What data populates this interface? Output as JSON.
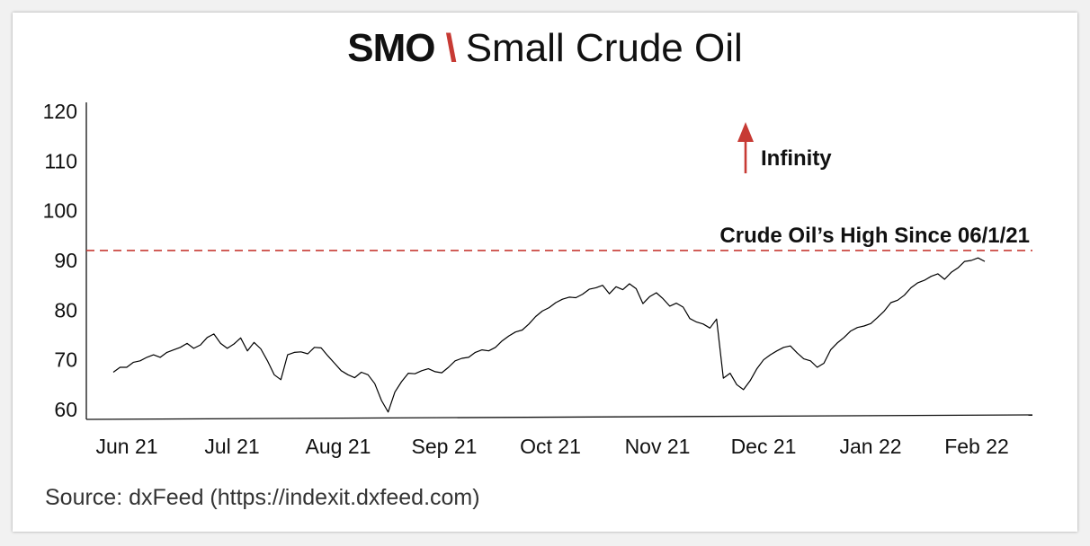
{
  "title": {
    "code": "SMO",
    "separator": "\\",
    "name": "Small Crude Oil"
  },
  "source": "Source: dxFeed (https://indexit.dxfeed.com)",
  "colors": {
    "line": "#000000",
    "accent": "#c73a34"
  },
  "chart_data": {
    "type": "line",
    "title": "SMO \\ Small Crude Oil",
    "xlabel": "",
    "ylabel": "",
    "ylim": [
      60,
      120
    ],
    "y_ticks": [
      60,
      70,
      80,
      90,
      100,
      110,
      120
    ],
    "x_tick_labels": [
      "Jun 21",
      "Jul 21",
      "Aug 21",
      "Sep 21",
      "Oct 21",
      "Nov 21",
      "Dec 21",
      "Jan 22",
      "Feb 22"
    ],
    "grid": false,
    "reference_line": {
      "label": "Crude Oil’s High Since 06/1/21",
      "value": 92,
      "style": "dashed"
    },
    "annotation": {
      "label": "Infinity",
      "direction": "up"
    },
    "series": [
      {
        "x": [
          "2021-06-01",
          "2021-06-03",
          "2021-06-05",
          "2021-06-07",
          "2021-06-09",
          "2021-06-11",
          "2021-06-13",
          "2021-06-15",
          "2021-06-17",
          "2021-06-19",
          "2021-06-21",
          "2021-06-23",
          "2021-06-25",
          "2021-06-27",
          "2021-06-29",
          "2021-07-01",
          "2021-07-03",
          "2021-07-05",
          "2021-07-07",
          "2021-07-09",
          "2021-07-11",
          "2021-07-13",
          "2021-07-15",
          "2021-07-17",
          "2021-07-19",
          "2021-07-21",
          "2021-07-23",
          "2021-07-25",
          "2021-07-27",
          "2021-07-29",
          "2021-07-31",
          "2021-08-02",
          "2021-08-04",
          "2021-08-06",
          "2021-08-08",
          "2021-08-10",
          "2021-08-12",
          "2021-08-14",
          "2021-08-16",
          "2021-08-18",
          "2021-08-20",
          "2021-08-22",
          "2021-08-24",
          "2021-08-26",
          "2021-08-28",
          "2021-08-30",
          "2021-09-01",
          "2021-09-03",
          "2021-09-05",
          "2021-09-07",
          "2021-09-09",
          "2021-09-11",
          "2021-09-13",
          "2021-09-15",
          "2021-09-17",
          "2021-09-19",
          "2021-09-21",
          "2021-09-23",
          "2021-09-25",
          "2021-09-27",
          "2021-09-29",
          "2021-10-01",
          "2021-10-03",
          "2021-10-05",
          "2021-10-07",
          "2021-10-09",
          "2021-10-11",
          "2021-10-13",
          "2021-10-15",
          "2021-10-17",
          "2021-10-19",
          "2021-10-21",
          "2021-10-23",
          "2021-10-25",
          "2021-10-27",
          "2021-10-29",
          "2021-10-31",
          "2021-11-02",
          "2021-11-04",
          "2021-11-06",
          "2021-11-08",
          "2021-11-10",
          "2021-11-12",
          "2021-11-14",
          "2021-11-16",
          "2021-11-18",
          "2021-11-20",
          "2021-11-22",
          "2021-11-24",
          "2021-11-26",
          "2021-11-28",
          "2021-11-30",
          "2021-12-02",
          "2021-12-04",
          "2021-12-06",
          "2021-12-08",
          "2021-12-10",
          "2021-12-12",
          "2021-12-14",
          "2021-12-16",
          "2021-12-18",
          "2021-12-20",
          "2021-12-22",
          "2021-12-24",
          "2021-12-26",
          "2021-12-28",
          "2021-12-30",
          "2022-01-01",
          "2022-01-03",
          "2022-01-05",
          "2022-01-07",
          "2022-01-09",
          "2022-01-11",
          "2022-01-13",
          "2022-01-15",
          "2022-01-17",
          "2022-01-19",
          "2022-01-21",
          "2022-01-23",
          "2022-01-25",
          "2022-01-27",
          "2022-01-29",
          "2022-01-31",
          "2022-02-02",
          "2022-02-04",
          "2022-02-06",
          "2022-02-08",
          "2022-02-10",
          "2022-02-12",
          "2022-02-14",
          "2022-02-16"
        ],
        "values": [
          67.5,
          68.5,
          68.5,
          69.5,
          69.8,
          70.5,
          71.0,
          70.5,
          71.5,
          72.0,
          72.5,
          73.3,
          72.3,
          73.0,
          74.5,
          75.2,
          73.3,
          72.3,
          73.2,
          74.4,
          71.8,
          73.5,
          72.2,
          69.8,
          67.0,
          66.0,
          71.0,
          71.5,
          71.6,
          71.2,
          72.5,
          72.4,
          70.8,
          69.3,
          67.8,
          67.0,
          66.4,
          67.5,
          67.0,
          65.2,
          61.8,
          59.5,
          63.5,
          65.6,
          67.3,
          67.2,
          67.8,
          68.2,
          67.6,
          67.4,
          68.5,
          69.8,
          70.3,
          70.5,
          71.5,
          72.0,
          71.8,
          72.5,
          73.8,
          74.8,
          75.6,
          76.0,
          77.2,
          78.7,
          79.8,
          80.5,
          81.5,
          82.2,
          82.6,
          82.5,
          83.2,
          84.2,
          84.5,
          85.0,
          83.3,
          84.7,
          84.1,
          85.3,
          84.3,
          81.3,
          82.7,
          83.5,
          82.3,
          80.8,
          81.4,
          80.6,
          78.3,
          77.6,
          77.2,
          76.4,
          78.2,
          66.3,
          67.3,
          65.0,
          64.0,
          65.8,
          68.2,
          70.0,
          71.0,
          71.8,
          72.5,
          72.8,
          71.4,
          70.2,
          69.8,
          68.5,
          69.3,
          72.0,
          73.4,
          74.5,
          75.8,
          76.5,
          76.8,
          77.3,
          78.5,
          79.8,
          81.5,
          82.0,
          83.0,
          84.5,
          85.5,
          86.0,
          86.8,
          87.3,
          86.2,
          87.6,
          88.5,
          89.8,
          90.0,
          90.5,
          89.8
        ],
        "note": "approximate"
      }
    ]
  }
}
